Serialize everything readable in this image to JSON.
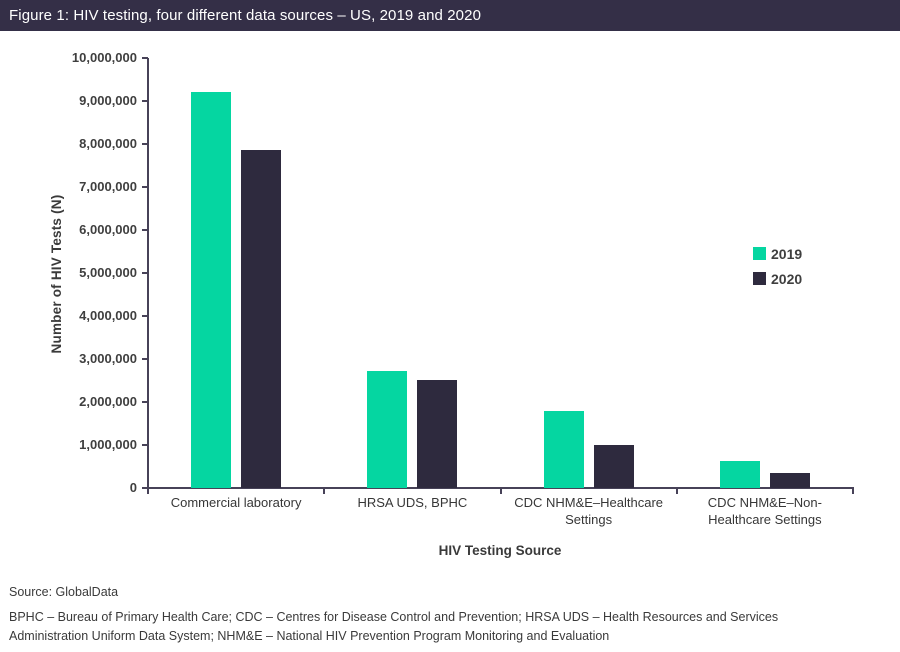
{
  "title_bar": {
    "text": "Figure 1: HIV testing, four different data sources – US, 2019 and 2020"
  },
  "chart_data": {
    "type": "bar",
    "title": "Figure 1: HIV testing, four different data sources – US, 2019 and 2020",
    "categories": [
      "Commercial laboratory",
      "HRSA UDS, BPHC",
      "CDC NHM&E–Healthcare Settings",
      "CDC NHM&E–Non-Healthcare Settings"
    ],
    "series": [
      {
        "name": "2019",
        "color": "#05d6a1",
        "values": [
          9200000,
          2720000,
          1790000,
          630000
        ]
      },
      {
        "name": "2020",
        "color": "#2e2a3e",
        "values": [
          7850000,
          2500000,
          1000000,
          350000
        ]
      }
    ],
    "xlabel": "HIV Testing Source",
    "ylabel": "Number  of HIV Tests (N)",
    "ylim": [
      0,
      10000000
    ],
    "ytick_step": 1000000,
    "ytick_labels": [
      "0",
      "1,000,000",
      "2,000,000",
      "3,000,000",
      "4,000,000",
      "5,000,000",
      "6,000,000",
      "7,000,000",
      "8,000,000",
      "9,000,000",
      "10,000,000"
    ],
    "grid": false,
    "legend_position": "right"
  },
  "footer": {
    "source": "Source: GlobalData",
    "abbreviations": "BPHC – Bureau of Primary Health Care; CDC – Centres for Disease Control and Prevention; HRSA UDS – Health Resources and Services Administration Uniform Data System; NHM&E – National HIV Prevention Program Monitoring and Evaluation"
  },
  "colors": {
    "header_bg": "#342f47",
    "series_2019": "#05d6a1",
    "series_2020": "#2e2a3e",
    "axis": "#474258",
    "text": "#3f3f3f"
  }
}
